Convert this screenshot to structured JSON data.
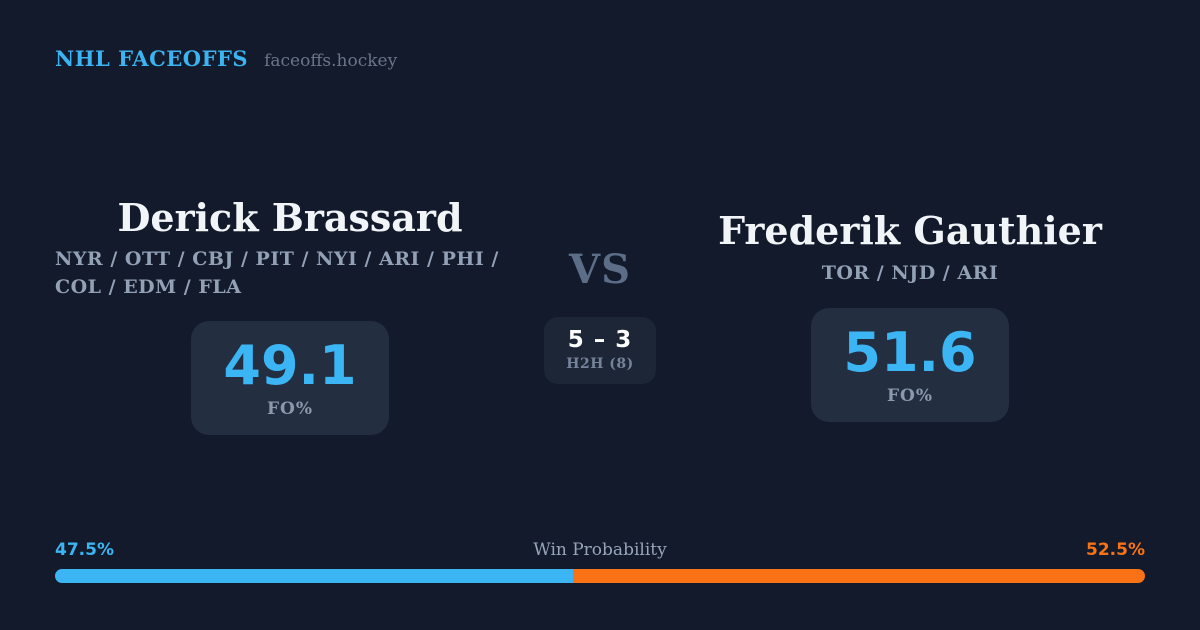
{
  "colors": {
    "background": "#121A2B",
    "accent_blue": "#3BB5F3",
    "accent_orange": "#F97316",
    "card_background": "#232E41"
  },
  "header": {
    "brand": "NHL FACEOFFS",
    "site": "faceoffs.hockey"
  },
  "matchup": {
    "player_left": {
      "name": "Derick Brassard",
      "teams": "NYR / OTT / CBJ / PIT / NYI / ARI / PHI / COL / EDM / FLA",
      "stat_value": "49.1",
      "stat_label": "FO%"
    },
    "vs_label": "VS",
    "h2h": {
      "score": "5 – 3",
      "label": "H2H (8)"
    },
    "player_right": {
      "name": "Frederik Gauthier",
      "teams": "TOR / NJD / ARI",
      "stat_value": "51.6",
      "stat_label": "FO%"
    }
  },
  "win_probability": {
    "title": "Win Probability",
    "left_pct_label": "47.5%",
    "right_pct_label": "52.5%",
    "left_value": 47.5,
    "right_value": 52.5
  }
}
